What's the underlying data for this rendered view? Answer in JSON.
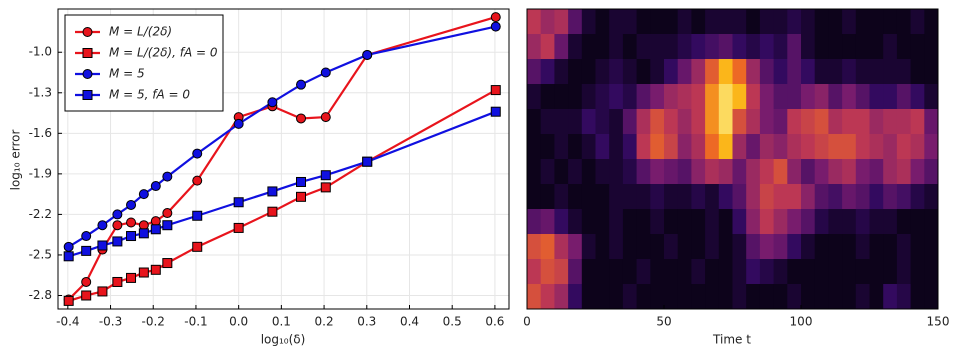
{
  "chart_data": [
    {
      "type": "line",
      "xlabel": "log₁₀(δ)",
      "ylabel": "log₁₀ error",
      "x": [
        -0.398,
        -0.357,
        -0.319,
        -0.284,
        -0.252,
        -0.222,
        -0.194,
        -0.167,
        -0.097,
        0,
        0.079,
        0.146,
        0.204,
        0.301,
        0.602
      ],
      "xlim": [
        -0.423,
        0.633
      ],
      "ylim": [
        -2.9,
        -0.68
      ],
      "xticks": [
        -0.4,
        -0.3,
        -0.2,
        -0.1,
        {
          "value": 0,
          "label": "0.0"
        },
        0.1,
        0.2,
        0.3,
        0.4,
        0.5,
        0.6
      ],
      "yticks": [
        {
          "value": -1,
          "label": "-1.0"
        },
        -1.3,
        -1.6,
        -1.9,
        -2.2,
        -2.5,
        -2.8
      ],
      "grid": true,
      "legend": "upper left",
      "series": [
        {
          "name": "M = L/(2δ)",
          "color": "#e8141c",
          "marker": "circle",
          "values": [
            -2.83,
            -2.7,
            -2.46,
            -2.28,
            -2.26,
            -2.28,
            -2.25,
            -2.19,
            -1.95,
            -1.48,
            -1.4,
            -1.49,
            -1.48,
            -1.02,
            -0.74
          ]
        },
        {
          "name": "M = L/(2δ), fA = 0",
          "color": "#e8141c",
          "marker": "square",
          "values": [
            -2.84,
            -2.8,
            -2.77,
            -2.7,
            -2.67,
            -2.63,
            -2.61,
            -2.56,
            -2.44,
            -2.3,
            -2.18,
            -2.07,
            -2.0,
            -1.81,
            -1.28
          ]
        },
        {
          "name": "M = 5",
          "color": "#1010e0",
          "marker": "circle",
          "values": [
            -2.44,
            -2.36,
            -2.28,
            -2.2,
            -2.13,
            -2.05,
            -1.99,
            -1.92,
            -1.75,
            -1.53,
            -1.37,
            -1.24,
            -1.15,
            -1.02,
            -0.81
          ]
        },
        {
          "name": "M = 5, fA = 0",
          "color": "#1010e0",
          "marker": "square",
          "values": [
            -2.51,
            -2.47,
            -2.43,
            -2.4,
            -2.36,
            -2.34,
            -2.31,
            -2.28,
            -2.21,
            -2.11,
            -2.03,
            -1.96,
            -1.91,
            -1.81,
            -1.44
          ]
        }
      ]
    },
    {
      "type": "heatmap",
      "xlabel": "Time t",
      "xlim": [
        0,
        150
      ],
      "xticks": [
        0,
        50,
        100,
        150
      ],
      "colormap": "inferno",
      "z": [
        [
          0.6,
          0.5,
          0.55,
          0.3,
          0.1,
          0.05,
          0.1,
          0.1,
          0.05,
          0.05,
          0.05,
          0.1,
          0.05,
          0.1,
          0.1,
          0.1,
          0.05,
          0.1,
          0.1,
          0.15,
          0.1,
          0.05,
          0.05,
          0.1,
          0.05,
          0.05,
          0.05,
          0.05,
          0.1,
          0.05
        ],
        [
          0.5,
          0.6,
          0.35,
          0.1,
          0.05,
          0.05,
          0.1,
          0.05,
          0.1,
          0.1,
          0.1,
          0.15,
          0.2,
          0.25,
          0.3,
          0.2,
          0.15,
          0.2,
          0.15,
          0.3,
          0.1,
          0.05,
          0.05,
          0.05,
          0.05,
          0.05,
          0.1,
          0.05,
          0.05,
          0.05
        ],
        [
          0.3,
          0.2,
          0.1,
          0.05,
          0.05,
          0.1,
          0.15,
          0.1,
          0.05,
          0.1,
          0.2,
          0.35,
          0.5,
          0.75,
          0.9,
          0.8,
          0.5,
          0.3,
          0.2,
          0.3,
          0.2,
          0.1,
          0.1,
          0.15,
          0.1,
          0.1,
          0.1,
          0.1,
          0.05,
          0.05
        ],
        [
          0.1,
          0.05,
          0.05,
          0.05,
          0.1,
          0.15,
          0.2,
          0.15,
          0.3,
          0.4,
          0.5,
          0.55,
          0.6,
          0.85,
          0.95,
          0.9,
          0.6,
          0.4,
          0.3,
          0.3,
          0.4,
          0.45,
          0.3,
          0.4,
          0.3,
          0.2,
          0.2,
          0.3,
          0.2,
          0.1
        ],
        [
          0.05,
          0.1,
          0.1,
          0.1,
          0.2,
          0.15,
          0.1,
          0.3,
          0.55,
          0.7,
          0.6,
          0.5,
          0.6,
          0.85,
          0.95,
          0.7,
          0.55,
          0.4,
          0.35,
          0.6,
          0.65,
          0.7,
          0.55,
          0.6,
          0.6,
          0.5,
          0.55,
          0.55,
          0.6,
          0.35
        ],
        [
          0.05,
          0.05,
          0.1,
          0.05,
          0.1,
          0.2,
          0.1,
          0.2,
          0.6,
          0.75,
          0.65,
          0.45,
          0.55,
          0.8,
          0.9,
          0.5,
          0.35,
          0.5,
          0.45,
          0.55,
          0.6,
          0.65,
          0.7,
          0.7,
          0.6,
          0.55,
          0.5,
          0.6,
          0.55,
          0.4
        ],
        [
          0.05,
          0.1,
          0.05,
          0.1,
          0.05,
          0.1,
          0.1,
          0.15,
          0.3,
          0.4,
          0.35,
          0.3,
          0.45,
          0.55,
          0.5,
          0.35,
          0.5,
          0.6,
          0.7,
          0.45,
          0.3,
          0.4,
          0.5,
          0.55,
          0.4,
          0.35,
          0.5,
          0.55,
          0.4,
          0.3
        ],
        [
          0.05,
          0.05,
          0.1,
          0.05,
          0.05,
          0.05,
          0.1,
          0.1,
          0.1,
          0.15,
          0.1,
          0.1,
          0.15,
          0.1,
          0.2,
          0.3,
          0.5,
          0.65,
          0.6,
          0.6,
          0.45,
          0.3,
          0.25,
          0.35,
          0.3,
          0.2,
          0.3,
          0.25,
          0.15,
          0.1
        ],
        [
          0.3,
          0.35,
          0.2,
          0.1,
          0.05,
          0.05,
          0.1,
          0.05,
          0.05,
          0.1,
          0.05,
          0.05,
          0.05,
          0.1,
          0.05,
          0.2,
          0.45,
          0.6,
          0.5,
          0.4,
          0.3,
          0.15,
          0.1,
          0.1,
          0.15,
          0.1,
          0.1,
          0.05,
          0.05,
          0.05
        ],
        [
          0.7,
          0.75,
          0.55,
          0.4,
          0.1,
          0.05,
          0.1,
          0.05,
          0.05,
          0.05,
          0.1,
          0.05,
          0.05,
          0.1,
          0.05,
          0.1,
          0.3,
          0.4,
          0.35,
          0.2,
          0.1,
          0.05,
          0.05,
          0.05,
          0.1,
          0.05,
          0.05,
          0.1,
          0.05,
          0.05
        ],
        [
          0.6,
          0.7,
          0.65,
          0.3,
          0.05,
          0.05,
          0.05,
          0.05,
          0.1,
          0.05,
          0.05,
          0.05,
          0.1,
          0.05,
          0.05,
          0.1,
          0.2,
          0.15,
          0.1,
          0.05,
          0.05,
          0.05,
          0.05,
          0.05,
          0.05,
          0.05,
          0.05,
          0.1,
          0.05,
          0.05
        ],
        [
          0.7,
          0.6,
          0.5,
          0.2,
          0.05,
          0.05,
          0.05,
          0.1,
          0.05,
          0.05,
          0.05,
          0.05,
          0.05,
          0.05,
          0.05,
          0.1,
          0.05,
          0.05,
          0.05,
          0.1,
          0.05,
          0.05,
          0.05,
          0.05,
          0.1,
          0.05,
          0.2,
          0.15,
          0.05,
          0.05
        ]
      ]
    }
  ]
}
